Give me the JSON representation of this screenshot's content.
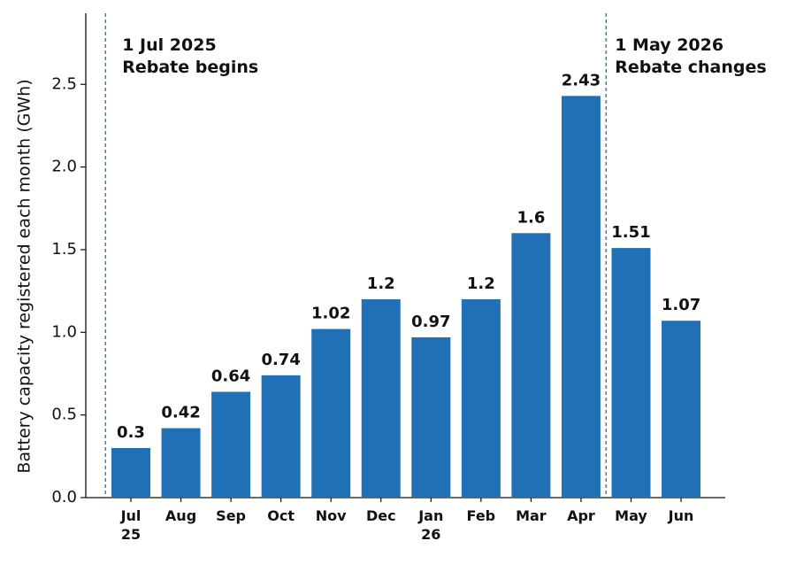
{
  "chart_data": {
    "type": "bar",
    "y_label": "Battery capacity registered each month (GWh)",
    "categories": [
      "Jul 25",
      "Aug",
      "Sep",
      "Oct",
      "Nov",
      "Dec",
      "Jan 26",
      "Feb",
      "Mar",
      "Apr",
      "May",
      "Jun"
    ],
    "values": [
      0.3,
      0.42,
      0.64,
      0.74,
      1.02,
      1.2,
      0.97,
      1.2,
      1.6,
      2.43,
      1.51,
      1.07
    ],
    "color": "#1f70b5",
    "ylim": [
      0,
      2.93
    ],
    "yticks": [
      {
        "value": 0,
        "label": "0.0"
      },
      0.5,
      {
        "value": 1,
        "label": "1.0"
      },
      1.5,
      {
        "value": 2,
        "label": "2.0"
      },
      2.5
    ],
    "grid": false,
    "annotations": [
      {
        "lines": [
          "1 Jul 2025",
          "Rebate begins"
        ]
      },
      {
        "lines": [
          "1 May 2026",
          "Rebate changes"
        ]
      }
    ]
  }
}
